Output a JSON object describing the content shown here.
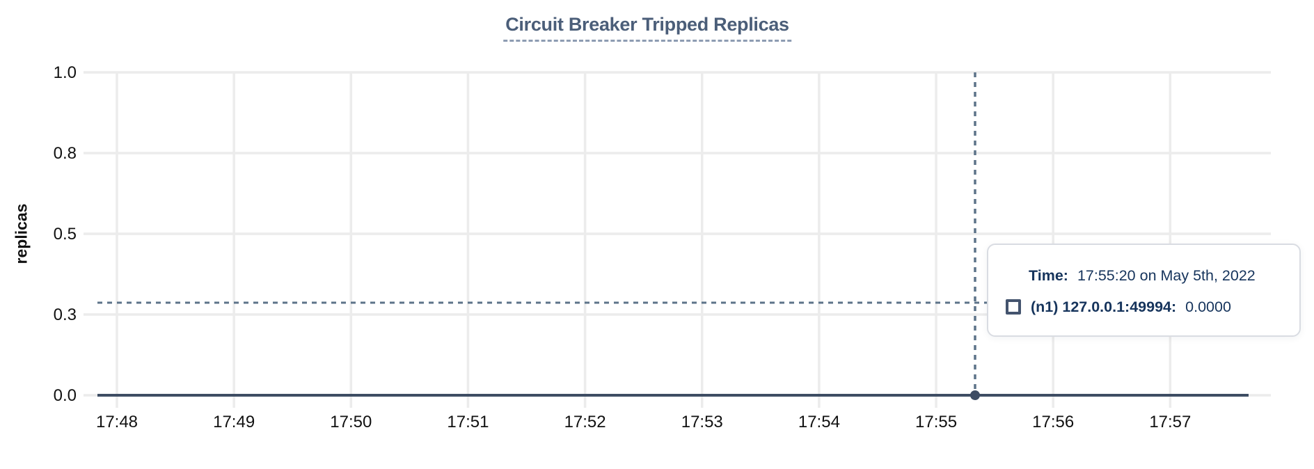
{
  "chart": {
    "colors": {
      "title": "#4b5e79",
      "title_underline": "#8d9cb2",
      "grid": "#ececec",
      "tick_text": "#111111",
      "series_line": "#3e4d63",
      "crosshair": "#5d7389",
      "cursor_dot": "#3d4c63",
      "tooltip_text": "#16345c",
      "tooltip_border": "#d9dce2"
    }
  },
  "chart_data": {
    "type": "line",
    "title": "Circuit Breaker Tripped Replicas",
    "xlabel": "",
    "ylabel": "replicas",
    "x_tick_labels": [
      "17:48",
      "17:49",
      "17:50",
      "17:51",
      "17:52",
      "17:53",
      "17:54",
      "17:55",
      "17:56",
      "17:57"
    ],
    "y_tick_labels": [
      "1.0",
      "0.8",
      "0.5",
      "0.3",
      "0.0"
    ],
    "y_tick_values": [
      1.0,
      0.75,
      0.5,
      0.25,
      0.0
    ],
    "ylim": [
      0,
      1
    ],
    "grid": true,
    "legend_position": "tooltip",
    "series": [
      {
        "name": "(n1) 127.0.0.1:49994",
        "values": [
          0,
          0,
          0,
          0,
          0,
          0,
          0,
          0,
          0,
          0
        ]
      }
    ],
    "cursor": {
      "time": "17:55:20",
      "date": "May 5th, 2022",
      "hovered_value": "0.0000"
    }
  },
  "tooltip": {
    "time_label": "Time:",
    "time_value": "17:55:20 on May 5th, 2022",
    "series_label": "(n1) 127.0.0.1:49994:",
    "series_value": "0.0000"
  }
}
